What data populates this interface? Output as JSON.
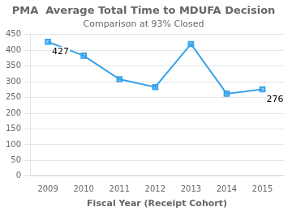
{
  "chart_data": {
    "type": "line",
    "title": "PMA  Average Total Time to MDUFA Decision",
    "subtitle": "Comparison at 93% Closed",
    "xlabel": "Fiscal Year (Receipt Cohort)",
    "x": [
      2009,
      2010,
      2011,
      2012,
      2013,
      2014,
      2015
    ],
    "values": [
      427,
      383,
      308,
      283,
      420,
      262,
      276
    ],
    "xlim": [
      2008.5,
      2015.6
    ],
    "xticks": [
      2009,
      2010,
      2011,
      2012,
      2013,
      2014,
      2015
    ],
    "ylim": [
      0,
      450
    ],
    "yticks": [
      0,
      50,
      100,
      150,
      200,
      250,
      300,
      350,
      400,
      450
    ],
    "marker": "square",
    "grid": "y",
    "annotations": [
      {
        "x": 2009,
        "y": 427,
        "label": "427"
      },
      {
        "x": 2015,
        "y": 276,
        "label": "276"
      }
    ]
  }
}
